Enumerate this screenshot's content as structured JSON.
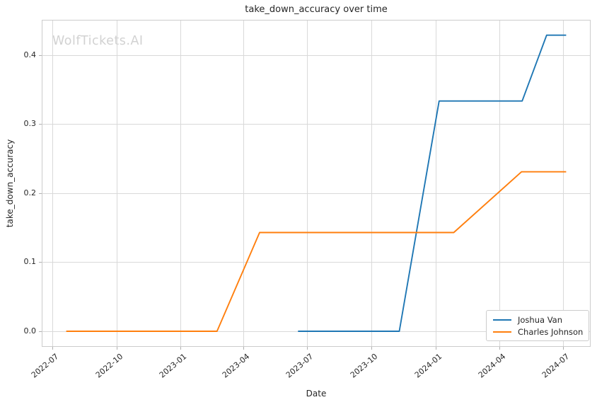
{
  "watermark": "WolfTickets.AI",
  "chart_data": {
    "type": "line",
    "title": "take_down_accuracy over time",
    "xlabel": "Date",
    "ylabel": "take_down_accuracy",
    "grid": true,
    "legend_position": "lower right",
    "xlim": [
      "2022-06-16",
      "2024-08-10"
    ],
    "ylim": [
      -0.0225,
      0.4508
    ],
    "x_ticks": [
      {
        "date": "2022-07-01",
        "label": "2022-07"
      },
      {
        "date": "2022-10-01",
        "label": "2022-10"
      },
      {
        "date": "2023-01-01",
        "label": "2023-01"
      },
      {
        "date": "2023-04-01",
        "label": "2023-04"
      },
      {
        "date": "2023-07-01",
        "label": "2023-07"
      },
      {
        "date": "2023-10-01",
        "label": "2023-10"
      },
      {
        "date": "2024-01-01",
        "label": "2024-01"
      },
      {
        "date": "2024-04-01",
        "label": "2024-04"
      },
      {
        "date": "2024-07-01",
        "label": "2024-07"
      }
    ],
    "y_ticks": [
      {
        "value": 0.0,
        "label": "0.0"
      },
      {
        "value": 0.1,
        "label": "0.1"
      },
      {
        "value": 0.2,
        "label": "0.2"
      },
      {
        "value": 0.3,
        "label": "0.3"
      },
      {
        "value": 0.4,
        "label": "0.4"
      }
    ],
    "series": [
      {
        "name": "Joshua Van",
        "color": "#1f77b4",
        "points": [
          {
            "date": "2023-06-18",
            "value": 0.0
          },
          {
            "date": "2023-11-10",
            "value": 0.0
          },
          {
            "date": "2024-01-06",
            "value": 0.3333
          },
          {
            "date": "2024-05-04",
            "value": 0.3333
          },
          {
            "date": "2024-06-08",
            "value": 0.4286
          },
          {
            "date": "2024-07-06",
            "value": 0.4286
          }
        ]
      },
      {
        "name": "Charles Johnson",
        "color": "#ff7f0e",
        "points": [
          {
            "date": "2022-07-21",
            "value": 0.0
          },
          {
            "date": "2023-02-22",
            "value": 0.0
          },
          {
            "date": "2023-04-24",
            "value": 0.1429
          },
          {
            "date": "2024-01-27",
            "value": 0.1429
          },
          {
            "date": "2024-05-03",
            "value": 0.2308
          },
          {
            "date": "2024-07-06",
            "value": 0.2308
          }
        ]
      }
    ],
    "colors": {
      "grid": "#d9d9d9",
      "spine": "#cccccc",
      "tick": "#b0b0b0",
      "text": "#262626"
    }
  }
}
